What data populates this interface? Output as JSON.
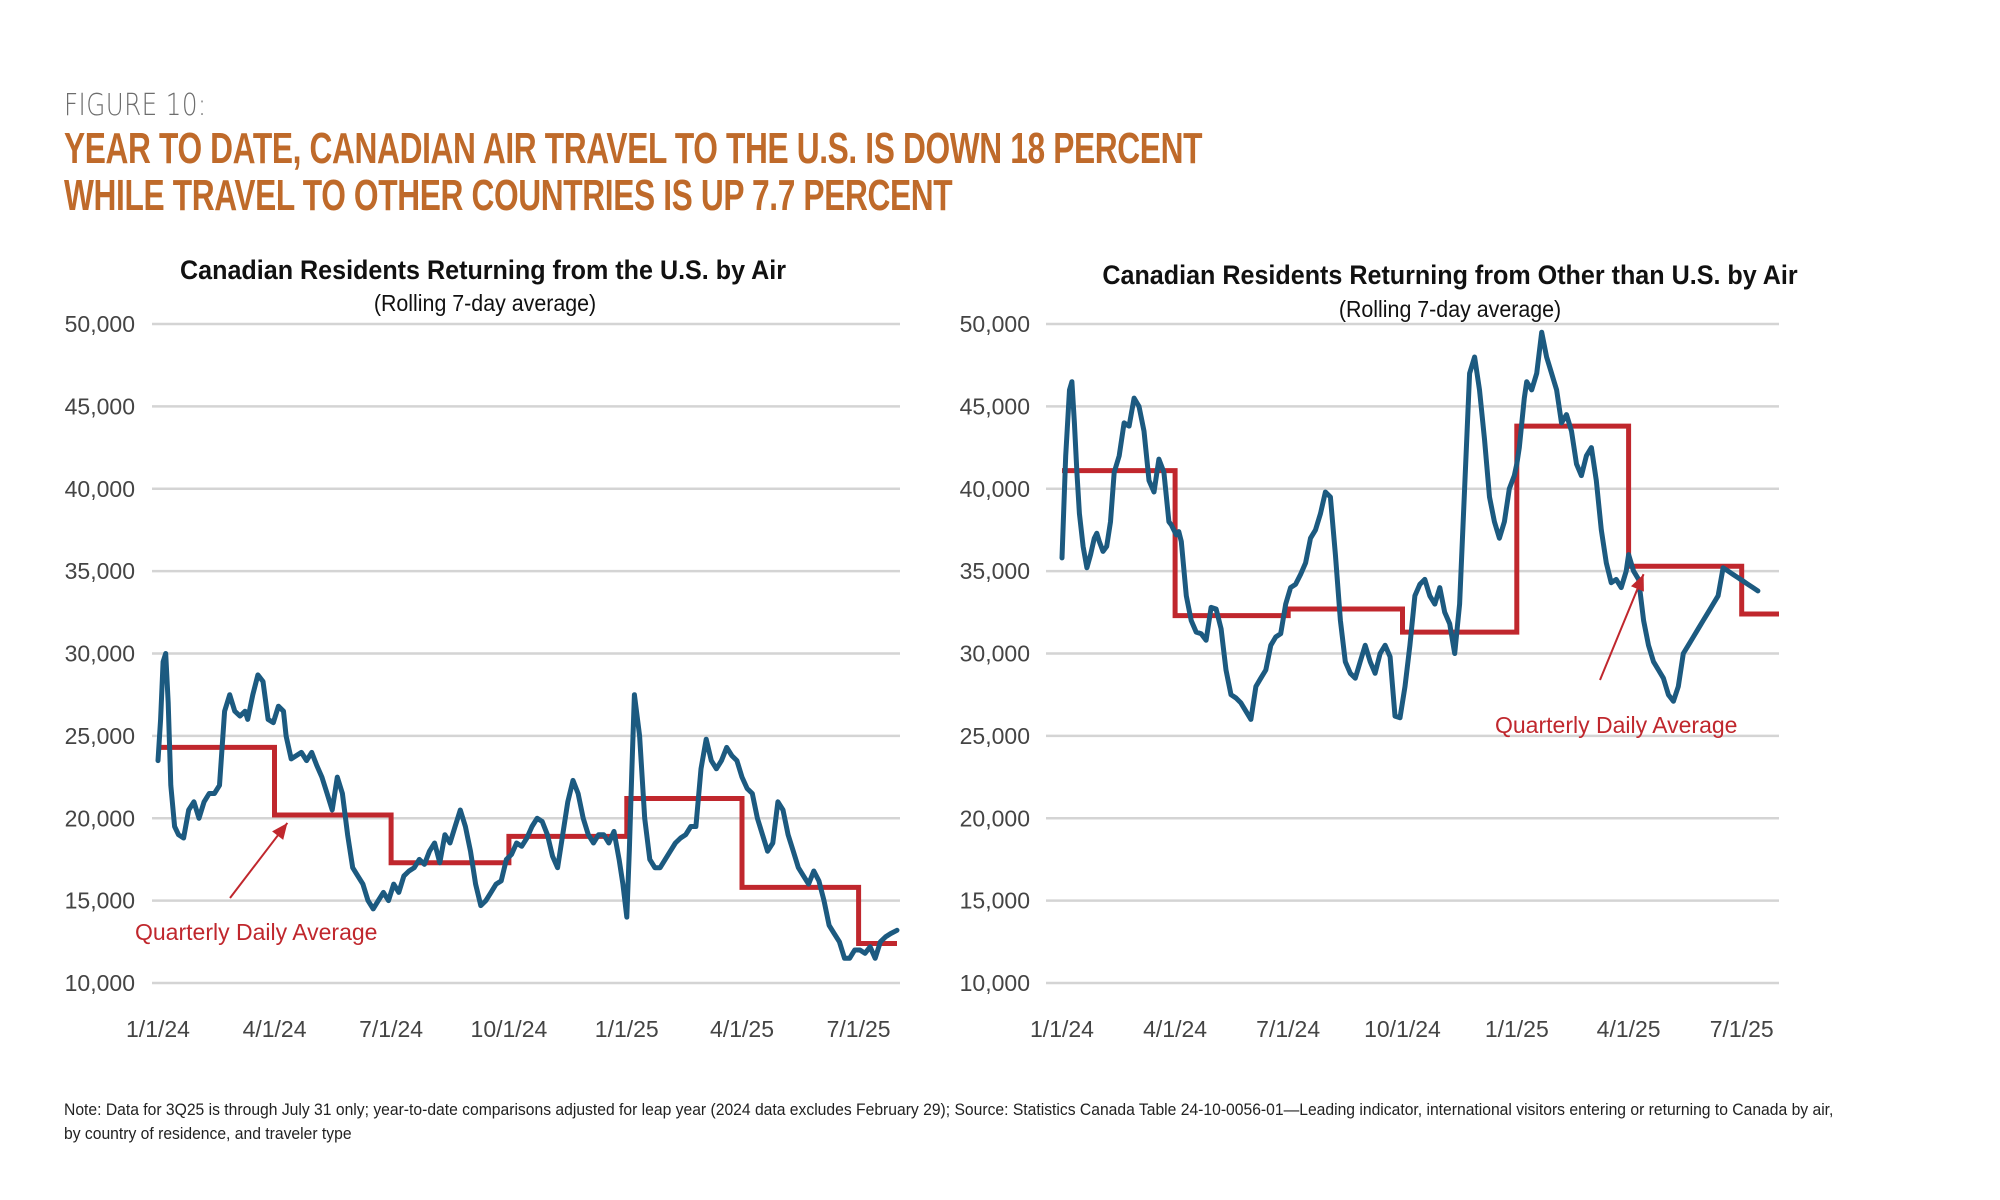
{
  "figure": {
    "label": "FIGURE 10:",
    "headline_line1": "YEAR TO DATE, CANADIAN AIR TRAVEL TO THE U.S. IS DOWN 18 PERCENT",
    "headline_line2": "WHILE TRAVEL TO OTHER COUNTRIES IS UP 7.7 PERCENT",
    "note": "Note: Data for 3Q25 is through July 31 only; year-to-date comparisons adjusted for leap year (2024 data excludes February 29); Source: Statistics Canada Table 24-10-0056-01—Leading indicator, international visitors entering or returning to Canada by air, by country of residence, and traveler type"
  },
  "colors": {
    "headline": "#bf6a2a",
    "series_line": "#1c5a80",
    "quarterly_step": "#c0272d",
    "gridline": "#d4d4d4",
    "axis_text": "#444444"
  },
  "chart_data": [
    {
      "type": "line",
      "title": "Canadian Residents Returning from the U.S. by Air",
      "subtitle": "(Rolling 7-day average)",
      "xlabel": "",
      "ylabel": "",
      "ylim": [
        10000,
        50000
      ],
      "yticks": [
        10000,
        15000,
        20000,
        25000,
        30000,
        35000,
        40000,
        45000,
        50000
      ],
      "ytick_labels": [
        "10,000",
        "15,000",
        "20,000",
        "25,000",
        "30,000",
        "35,000",
        "40,000",
        "45,000",
        "50,000"
      ],
      "xlim_days": [
        0,
        577
      ],
      "xticks_days": [
        0,
        91,
        182,
        274,
        366,
        456,
        547
      ],
      "xtick_labels": [
        "1/1/24",
        "4/1/24",
        "7/1/24",
        "10/1/24",
        "1/1/25",
        "4/1/25",
        "7/1/25"
      ],
      "grid": true,
      "annotation": {
        "text": "Quarterly Daily Average",
        "arrow_to_day": 101,
        "arrow_to_value": 20200
      },
      "series": [
        {
          "name": "Rolling 7-day average",
          "x_days": [
            0,
            2,
            4,
            6,
            8,
            10,
            13,
            16,
            20,
            24,
            28,
            32,
            36,
            40,
            44,
            48,
            52,
            56,
            60,
            64,
            68,
            70,
            74,
            78,
            82,
            86,
            90,
            94,
            98,
            100,
            104,
            108,
            112,
            116,
            120,
            124,
            128,
            132,
            136,
            140,
            144,
            148,
            152,
            156,
            160,
            164,
            168,
            172,
            176,
            180,
            184,
            188,
            192,
            196,
            200,
            204,
            208,
            212,
            216,
            220,
            224,
            228,
            232,
            236,
            240,
            244,
            248,
            252,
            256,
            260,
            264,
            268,
            272,
            276,
            280,
            284,
            288,
            292,
            296,
            300,
            304,
            308,
            312,
            316,
            320,
            324,
            328,
            332,
            336,
            340,
            344,
            348,
            352,
            356,
            360,
            363,
            366,
            368,
            370,
            372,
            376,
            380,
            384,
            388,
            392,
            396,
            400,
            404,
            408,
            412,
            416,
            420,
            424,
            428,
            432,
            436,
            440,
            444,
            448,
            452,
            456,
            460,
            464,
            468,
            472,
            476,
            480,
            484,
            488,
            492,
            496,
            500,
            504,
            508,
            512,
            516,
            520,
            524,
            528,
            532,
            536,
            540,
            544,
            548,
            552,
            556,
            560,
            564,
            568,
            572,
            577
          ],
          "values": [
            23500,
            26000,
            29500,
            30000,
            27000,
            22000,
            19500,
            19000,
            18800,
            20500,
            21000,
            20000,
            21000,
            21500,
            21500,
            22000,
            26500,
            27500,
            26500,
            26200,
            26500,
            26000,
            27500,
            28700,
            28300,
            26000,
            25800,
            26800,
            26500,
            25000,
            23600,
            23800,
            24000,
            23500,
            24000,
            23200,
            22500,
            21500,
            20500,
            22500,
            21500,
            19000,
            17000,
            16500,
            16000,
            15000,
            14500,
            15000,
            15500,
            15000,
            16000,
            15500,
            16500,
            16800,
            17000,
            17500,
            17200,
            18000,
            18500,
            17300,
            19000,
            18500,
            19500,
            20500,
            19500,
            18000,
            16000,
            14700,
            15000,
            15500,
            16000,
            16200,
            17500,
            17800,
            18500,
            18300,
            18800,
            19500,
            20000,
            19800,
            19000,
            17700,
            17000,
            19000,
            21000,
            22300,
            21500,
            20000,
            19000,
            18500,
            19000,
            19000,
            18500,
            19200,
            17500,
            16000,
            14000,
            18000,
            23000,
            27500,
            25000,
            20000,
            17500,
            17000,
            17000,
            17500,
            18000,
            18500,
            18800,
            19000,
            19500,
            19500,
            23000,
            24800,
            23500,
            23000,
            23500,
            24300,
            23800,
            23500,
            22500,
            21800,
            21500,
            20000,
            19000,
            18000,
            18500,
            21000,
            20500,
            19000,
            18000,
            17000,
            16500,
            16000,
            16800,
            16200,
            15000,
            13500,
            13000,
            12500,
            11500,
            11500,
            12000,
            12000,
            11800,
            12200,
            11500,
            12500,
            12800,
            13000,
            13200
          ]
        },
        {
          "name": "Quarterly Daily Average",
          "quarters": [
            "1Q24",
            "2Q24",
            "3Q24",
            "4Q24",
            "1Q25",
            "2Q25",
            "3Q25"
          ],
          "start_days": [
            0,
            91,
            182,
            274,
            366,
            456,
            547
          ],
          "end_days": [
            91,
            182,
            274,
            366,
            456,
            547,
            577
          ],
          "values": [
            24300,
            20200,
            17300,
            18900,
            21200,
            15800,
            12400
          ]
        }
      ]
    },
    {
      "type": "line",
      "title": "Canadian Residents Returning from Other than U.S. by Air",
      "subtitle": "(Rolling 7-day average)",
      "xlabel": "",
      "ylabel": "",
      "ylim": [
        10000,
        50000
      ],
      "yticks": [
        10000,
        15000,
        20000,
        25000,
        30000,
        35000,
        40000,
        45000,
        50000
      ],
      "ytick_labels": [
        "10,000",
        "15,000",
        "20,000",
        "25,000",
        "30,000",
        "35,000",
        "40,000",
        "45,000",
        "50,000"
      ],
      "xlim_days": [
        0,
        577
      ],
      "xticks_days": [
        0,
        91,
        182,
        274,
        366,
        456,
        547
      ],
      "xtick_labels": [
        "1/1/24",
        "4/1/24",
        "7/1/24",
        "10/1/24",
        "1/1/25",
        "4/1/25",
        "7/1/25"
      ],
      "grid": true,
      "annotation": {
        "text": "Quarterly Daily Average",
        "arrow_to_day": 468,
        "arrow_to_value": 35300
      },
      "series": [
        {
          "name": "Rolling 7-day average",
          "x_days": [
            0,
            3,
            6,
            8,
            10,
            12,
            14,
            17,
            20,
            23,
            26,
            28,
            30,
            33,
            36,
            39,
            42,
            46,
            50,
            54,
            58,
            62,
            66,
            70,
            74,
            78,
            82,
            86,
            88,
            90,
            92,
            94,
            96,
            100,
            104,
            108,
            112,
            116,
            120,
            124,
            128,
            132,
            136,
            140,
            144,
            148,
            152,
            156,
            160,
            164,
            168,
            172,
            176,
            180,
            184,
            188,
            192,
            196,
            200,
            204,
            208,
            212,
            216,
            220,
            224,
            228,
            232,
            236,
            240,
            244,
            248,
            252,
            256,
            260,
            264,
            268,
            272,
            276,
            280,
            284,
            288,
            292,
            296,
            300,
            304,
            308,
            312,
            316,
            320,
            324,
            328,
            332,
            336,
            340,
            344,
            348,
            352,
            356,
            360,
            364,
            366,
            368,
            370,
            372,
            374,
            378,
            382,
            386,
            390,
            394,
            398,
            402,
            406,
            410,
            414,
            418,
            422,
            426,
            430,
            434,
            438,
            442,
            446,
            450,
            454,
            456,
            458,
            460,
            464,
            468,
            472,
            476,
            480,
            484,
            488,
            492,
            496,
            500,
            504,
            508,
            512,
            516,
            520,
            524,
            528,
            532,
            536,
            540,
            544,
            548,
            552,
            556,
            560,
            564,
            568,
            572,
            577
          ],
          "values": [
            35800,
            42000,
            46000,
            46500,
            44000,
            41000,
            38500,
            36500,
            35200,
            36000,
            37000,
            37300,
            36800,
            36200,
            36500,
            38000,
            41000,
            42000,
            44000,
            43800,
            45500,
            45000,
            43500,
            40500,
            39800,
            41800,
            41000,
            38000,
            37800,
            37500,
            37200,
            37400,
            36800,
            33500,
            32000,
            31300,
            31200,
            30800,
            32800,
            32700,
            31500,
            29000,
            27500,
            27300,
            27000,
            26500,
            26000,
            28000,
            28500,
            29000,
            30500,
            31000,
            31200,
            33000,
            34000,
            34200,
            34800,
            35500,
            37000,
            37500,
            38500,
            39800,
            39500,
            36000,
            32000,
            29500,
            28800,
            28500,
            29500,
            30500,
            29500,
            28800,
            30000,
            30500,
            29800,
            26200,
            26100,
            28000,
            30500,
            33500,
            34200,
            34500,
            33500,
            33000,
            34000,
            32500,
            31800,
            30000,
            33000,
            40000,
            47000,
            48000,
            46000,
            43000,
            39500,
            38000,
            37000,
            38000,
            40000,
            40800,
            41500,
            42500,
            44000,
            45500,
            46500,
            46000,
            47000,
            49500,
            48000,
            47000,
            46000,
            44000,
            44500,
            43500,
            41500,
            40800,
            42000,
            42500,
            40500,
            37500,
            35500,
            34300,
            34500,
            34000,
            35000,
            36000,
            35500,
            35000,
            34500,
            32000,
            30500,
            29500,
            29000,
            28500,
            27500,
            27100,
            28000,
            30000,
            30500,
            31000,
            31500,
            32000,
            32500,
            33000,
            33500,
            35200,
            35000,
            34800,
            34600,
            34400,
            34200,
            34000,
            33800
          ]
        },
        {
          "name": "Quarterly Daily Average",
          "quarters": [
            "1Q24",
            "2Q24",
            "3Q24",
            "4Q24",
            "1Q25",
            "2Q25",
            "3Q25"
          ],
          "start_days": [
            0,
            91,
            182,
            274,
            366,
            456,
            547
          ],
          "end_days": [
            91,
            182,
            274,
            366,
            456,
            547,
            577
          ],
          "values": [
            41100,
            32300,
            32700,
            31300,
            43800,
            35300,
            32400
          ]
        }
      ]
    }
  ]
}
